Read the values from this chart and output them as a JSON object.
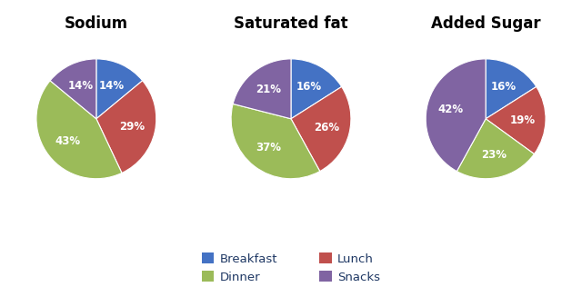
{
  "charts": [
    {
      "title": "Sodium",
      "values": [
        14,
        29,
        43,
        14
      ],
      "labels": [
        "14%",
        "29%",
        "43%",
        "14%"
      ],
      "colors": [
        "#4472C4",
        "#C0504D",
        "#9BBB59",
        "#8064A2"
      ],
      "startangle": 90
    },
    {
      "title": "Saturated fat",
      "values": [
        16,
        26,
        37,
        21
      ],
      "labels": [
        "16%",
        "26%",
        "37%",
        "21%"
      ],
      "colors": [
        "#4472C4",
        "#C0504D",
        "#9BBB59",
        "#8064A2"
      ],
      "startangle": 90
    },
    {
      "title": "Added Sugar",
      "values": [
        16,
        19,
        23,
        42
      ],
      "labels": [
        "16%",
        "19%",
        "23%",
        "42%"
      ],
      "colors": [
        "#4472C4",
        "#C0504D",
        "#9BBB59",
        "#8064A2"
      ],
      "startangle": 90
    }
  ],
  "legend_labels": [
    "Breakfast",
    "Lunch",
    "Dinner",
    "Snacks"
  ],
  "legend_colors": [
    "#4472C4",
    "#C0504D",
    "#9BBB59",
    "#8064A2"
  ],
  "text_color": "#FFFFFF",
  "label_fontsize": 8.5,
  "title_fontsize": 12,
  "background_color": "#FFFFFF"
}
